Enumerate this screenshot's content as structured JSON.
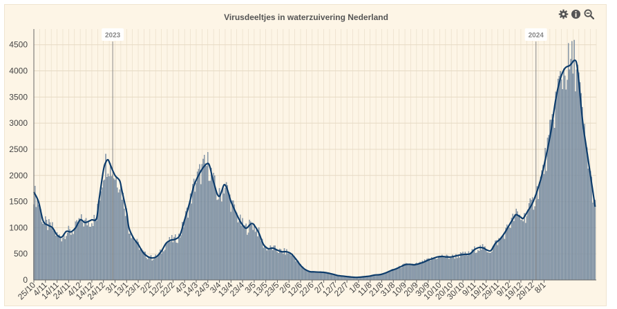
{
  "toolbar": {
    "icons": [
      "gear-icon",
      "info-icon",
      "zoom-out-icon"
    ]
  },
  "chart_data": {
    "type": "bar",
    "title": "Virusdeeltjes in waterzuivering Nederland",
    "xlabel": "",
    "ylabel": "",
    "ylim": [
      0,
      4800
    ],
    "yticks": [
      0,
      500,
      1000,
      1500,
      2000,
      2500,
      3000,
      3500,
      4000,
      4500
    ],
    "grid": true,
    "colors": {
      "bars": "#8fa1b3",
      "bar_edge": "#5e7389",
      "line": "#0d3c6b",
      "grid": "#e6dac4",
      "background": "#fdf5e6"
    },
    "xtick_labels": [
      "25/10",
      "4/11",
      "14/11",
      "24/11",
      "4/12",
      "14/12",
      "24/12",
      "3/1",
      "13/1",
      "23/1",
      "2/2",
      "12/2",
      "22/2",
      "4/3",
      "14/3",
      "24/3",
      "3/4",
      "13/4",
      "23/4",
      "3/5",
      "13/5",
      "23/5",
      "2/6",
      "12/6",
      "22/6",
      "2/7",
      "12/7",
      "22/7",
      "1/8",
      "11/8",
      "21/8",
      "31/8",
      "10/9",
      "20/9",
      "30/9",
      "10/10",
      "20/10",
      "30/10",
      "9/11",
      "19/11",
      "29/11",
      "9/12",
      "19/12",
      "29/12",
      "8/1"
    ],
    "year_markers": [
      {
        "label": "2023",
        "day": 68
      },
      {
        "label": "2024",
        "day": 433
      }
    ],
    "series": [
      {
        "name": "",
        "kind": "trend-line",
        "points": [
          [
            0,
            1680
          ],
          [
            4,
            1500
          ],
          [
            8,
            1130
          ],
          [
            12,
            1050
          ],
          [
            16,
            1000
          ],
          [
            20,
            860
          ],
          [
            24,
            820
          ],
          [
            28,
            930
          ],
          [
            32,
            920
          ],
          [
            36,
            1000
          ],
          [
            40,
            1150
          ],
          [
            44,
            1100
          ],
          [
            48,
            1130
          ],
          [
            50,
            1150
          ],
          [
            54,
            1170
          ],
          [
            56,
            1500
          ],
          [
            60,
            2100
          ],
          [
            62,
            2250
          ],
          [
            64,
            2300
          ],
          [
            66,
            2200
          ],
          [
            70,
            2000
          ],
          [
            74,
            1900
          ],
          [
            76,
            1700
          ],
          [
            80,
            1300
          ],
          [
            82,
            1000
          ],
          [
            86,
            800
          ],
          [
            90,
            680
          ],
          [
            94,
            530
          ],
          [
            98,
            450
          ],
          [
            102,
            420
          ],
          [
            106,
            450
          ],
          [
            110,
            550
          ],
          [
            114,
            700
          ],
          [
            118,
            760
          ],
          [
            122,
            780
          ],
          [
            126,
            860
          ],
          [
            130,
            1150
          ],
          [
            134,
            1450
          ],
          [
            138,
            1800
          ],
          [
            142,
            2000
          ],
          [
            146,
            2150
          ],
          [
            150,
            2230
          ],
          [
            152,
            2150
          ],
          [
            154,
            1950
          ],
          [
            156,
            1800
          ],
          [
            158,
            1650
          ],
          [
            160,
            1600
          ],
          [
            162,
            1700
          ],
          [
            164,
            1820
          ],
          [
            166,
            1780
          ],
          [
            168,
            1650
          ],
          [
            170,
            1500
          ],
          [
            174,
            1300
          ],
          [
            178,
            1120
          ],
          [
            182,
            1000
          ],
          [
            184,
            1000
          ],
          [
            186,
            1050
          ],
          [
            188,
            1080
          ],
          [
            190,
            1050
          ],
          [
            194,
            900
          ],
          [
            198,
            680
          ],
          [
            202,
            600
          ],
          [
            206,
            610
          ],
          [
            210,
            570
          ],
          [
            214,
            540
          ],
          [
            218,
            540
          ],
          [
            222,
            500
          ],
          [
            226,
            400
          ],
          [
            230,
            280
          ],
          [
            234,
            200
          ],
          [
            238,
            160
          ],
          [
            242,
            155
          ],
          [
            246,
            150
          ],
          [
            250,
            145
          ],
          [
            254,
            130
          ],
          [
            258,
            110
          ],
          [
            262,
            85
          ],
          [
            266,
            75
          ],
          [
            270,
            65
          ],
          [
            274,
            55
          ],
          [
            278,
            50
          ],
          [
            282,
            55
          ],
          [
            286,
            65
          ],
          [
            290,
            75
          ],
          [
            294,
            95
          ],
          [
            298,
            100
          ],
          [
            300,
            110
          ],
          [
            304,
            140
          ],
          [
            308,
            180
          ],
          [
            312,
            210
          ],
          [
            316,
            250
          ],
          [
            320,
            290
          ],
          [
            324,
            300
          ],
          [
            328,
            290
          ],
          [
            332,
            310
          ],
          [
            336,
            340
          ],
          [
            340,
            380
          ],
          [
            344,
            410
          ],
          [
            348,
            440
          ],
          [
            352,
            450
          ],
          [
            356,
            440
          ],
          [
            360,
            440
          ],
          [
            364,
            460
          ],
          [
            368,
            480
          ],
          [
            372,
            490
          ],
          [
            376,
            500
          ],
          [
            380,
            580
          ],
          [
            384,
            620
          ],
          [
            388,
            610
          ],
          [
            390,
            580
          ],
          [
            394,
            560
          ],
          [
            398,
            700
          ],
          [
            402,
            780
          ],
          [
            406,
            900
          ],
          [
            410,
            1050
          ],
          [
            414,
            1200
          ],
          [
            416,
            1250
          ],
          [
            420,
            1200
          ],
          [
            422,
            1180
          ],
          [
            426,
            1320
          ],
          [
            430,
            1470
          ],
          [
            434,
            1700
          ],
          [
            438,
            2000
          ],
          [
            442,
            2400
          ],
          [
            446,
            2850
          ],
          [
            450,
            3450
          ],
          [
            454,
            3850
          ],
          [
            458,
            4050
          ],
          [
            462,
            4100
          ],
          [
            464,
            4150
          ],
          [
            466,
            4200
          ],
          [
            468,
            4150
          ],
          [
            470,
            3800
          ],
          [
            472,
            3300
          ],
          [
            474,
            2900
          ],
          [
            476,
            2600
          ],
          [
            478,
            2300
          ],
          [
            480,
            2000
          ],
          [
            482,
            1700
          ],
          [
            484,
            1400
          ]
        ]
      }
    ]
  }
}
